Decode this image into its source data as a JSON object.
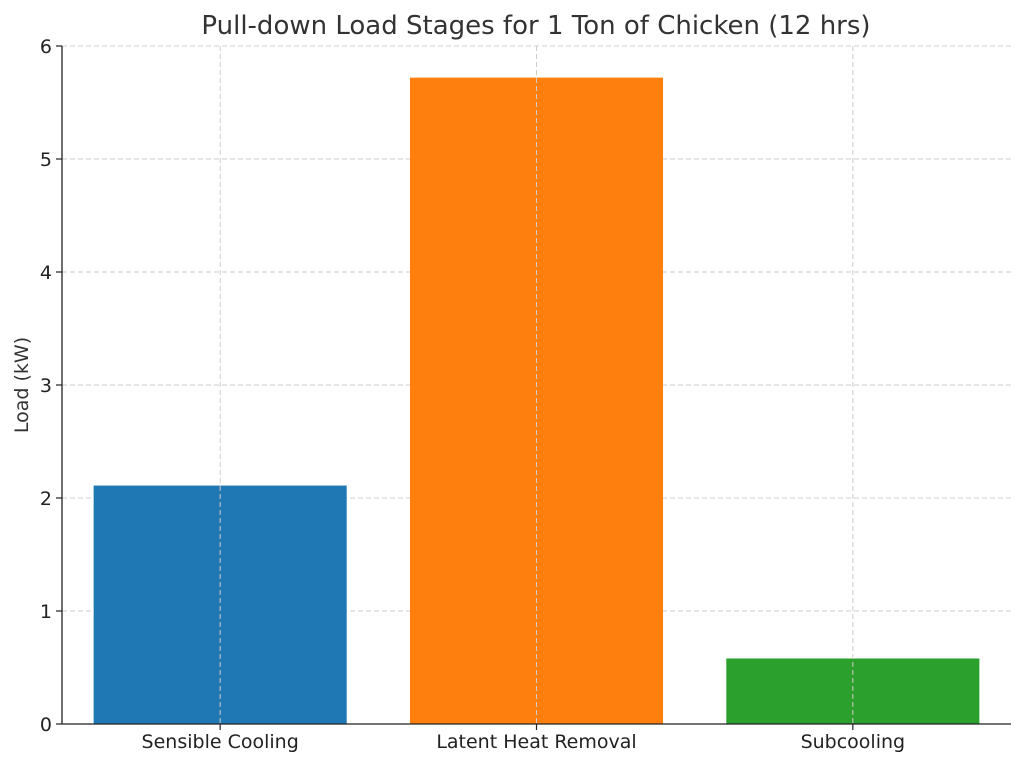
{
  "chart_data": {
    "type": "bar",
    "title": "Pull-down Load Stages for 1 Ton of Chicken (12 hrs)",
    "xlabel": "",
    "ylabel": "Load (kW)",
    "categories": [
      "Sensible Cooling",
      "Latent Heat Removal",
      "Subcooling"
    ],
    "values": [
      2.11,
      5.72,
      0.58
    ],
    "colors": [
      "#1f77b4",
      "#ff7f0e",
      "#2ca02c"
    ],
    "ylim": [
      0,
      6
    ],
    "yticks": [
      0,
      1,
      2,
      3,
      4,
      5,
      6
    ],
    "ytick_labels": [
      "0",
      "1",
      "2",
      "3",
      "4",
      "5",
      "6"
    ],
    "grid": true,
    "legend": "none"
  }
}
